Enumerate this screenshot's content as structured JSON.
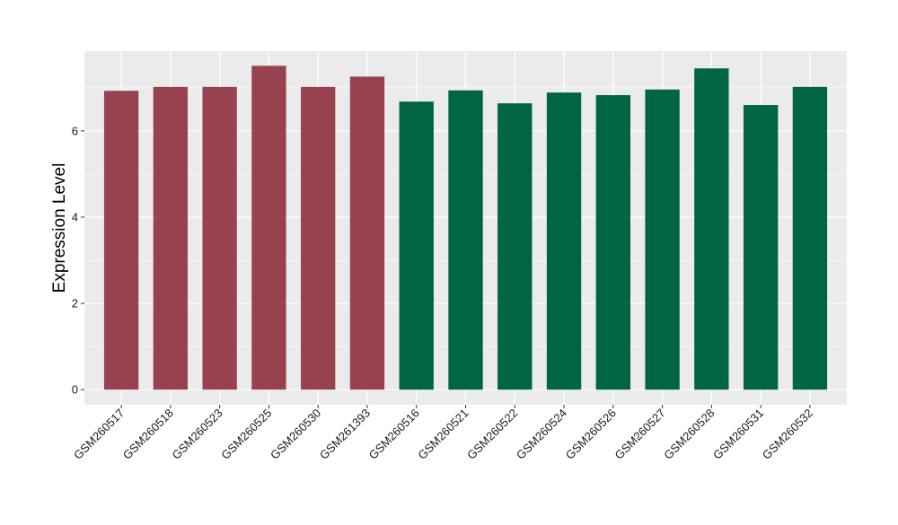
{
  "chart_data": {
    "type": "bar",
    "title": "",
    "xlabel": "",
    "ylabel": "Expression Level",
    "ylim": [
      -0.35,
      7.85
    ],
    "yticks": [
      0,
      2,
      4,
      6
    ],
    "grid": true,
    "categories": [
      "GSM260517",
      "GSM260518",
      "GSM260523",
      "GSM260525",
      "GSM260530",
      "GSM261393",
      "GSM260516",
      "GSM260521",
      "GSM260522",
      "GSM260524",
      "GSM260526",
      "GSM260527",
      "GSM260528",
      "GSM260531",
      "GSM260532"
    ],
    "values": [
      6.93,
      7.02,
      7.02,
      7.51,
      7.02,
      7.26,
      6.68,
      6.94,
      6.64,
      6.89,
      6.83,
      6.96,
      7.45,
      6.6,
      7.02
    ],
    "groups": [
      0,
      0,
      0,
      0,
      0,
      0,
      1,
      1,
      1,
      1,
      1,
      1,
      1,
      1,
      1
    ],
    "colors": {
      "group_colors": [
        "#99424F",
        "#006543"
      ],
      "panel_background": "#EBEBEB",
      "gridline": "#FFFFFF"
    }
  }
}
